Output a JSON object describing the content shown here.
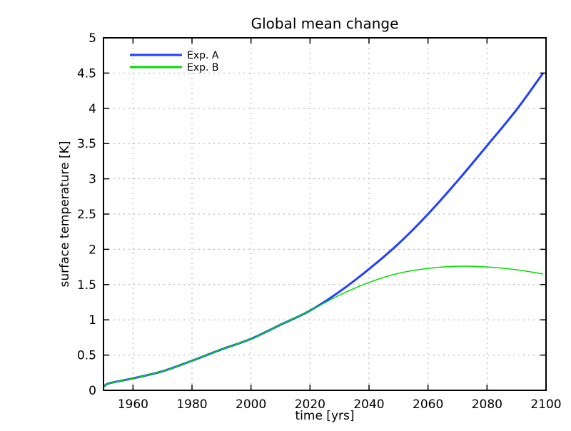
{
  "chart_data": {
    "type": "line",
    "title": "Global mean change",
    "xlabel": "time [yrs]",
    "ylabel": "surface temperature [K]",
    "xlim": [
      1950,
      2100
    ],
    "ylim": [
      0,
      5
    ],
    "xticks": [
      1960,
      1980,
      2000,
      2020,
      2040,
      2060,
      2080,
      2100
    ],
    "yticks": [
      0,
      0.5,
      1,
      1.5,
      2,
      2.5,
      3,
      3.5,
      4,
      4.5,
      5
    ],
    "ytick_labels": [
      "0",
      "0.5",
      "1",
      "1.5",
      "2",
      "2.5",
      "3",
      "3.5",
      "4",
      "4.5",
      "5"
    ],
    "grid": true,
    "legend_placement": "top-left",
    "series": [
      {
        "name": "Exp. A",
        "color": "#2040ff",
        "x": [
          1950,
          1952,
          1960,
          1970,
          1980,
          1990,
          2000,
          2010,
          2020,
          2030,
          2040,
          2050,
          2060,
          2070,
          2080,
          2090,
          2099
        ],
        "y": [
          0.05,
          0.1,
          0.17,
          0.27,
          0.42,
          0.58,
          0.73,
          0.93,
          1.13,
          1.4,
          1.72,
          2.08,
          2.5,
          2.97,
          3.47,
          3.98,
          4.5
        ]
      },
      {
        "name": "Exp. B",
        "color": "#00dd00",
        "x": [
          1950,
          1952,
          1960,
          1970,
          1980,
          1990,
          2000,
          2010,
          2020,
          2030,
          2040,
          2050,
          2060,
          2070,
          2080,
          2090,
          2099
        ],
        "y": [
          0.05,
          0.1,
          0.17,
          0.27,
          0.42,
          0.58,
          0.73,
          0.93,
          1.13,
          1.35,
          1.53,
          1.66,
          1.73,
          1.76,
          1.75,
          1.71,
          1.65
        ]
      }
    ]
  }
}
